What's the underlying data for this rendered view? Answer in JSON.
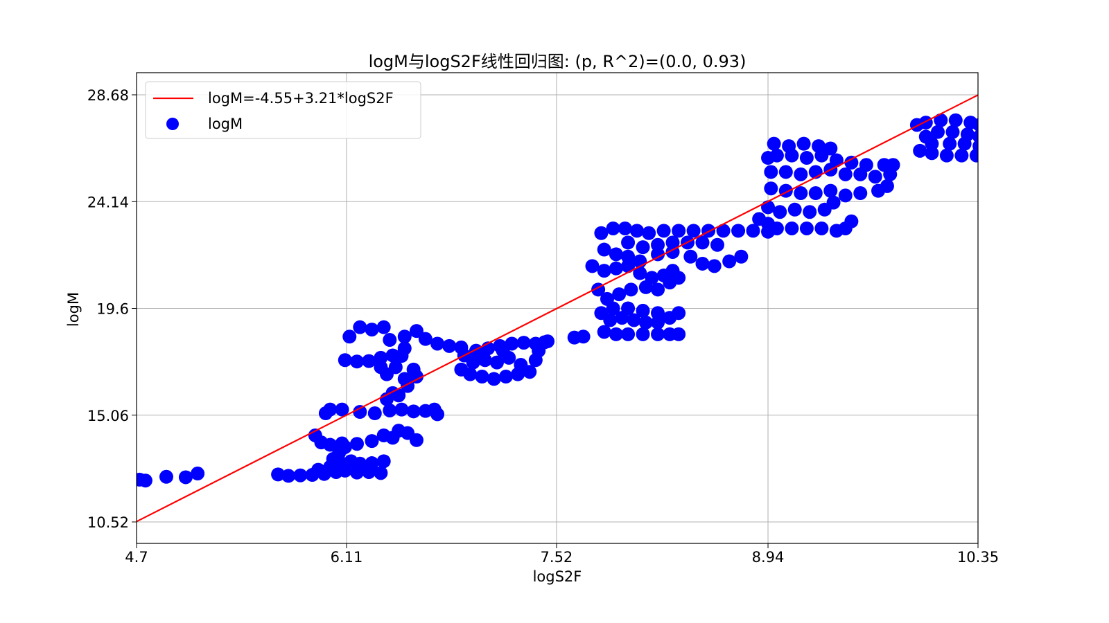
{
  "chart_data": {
    "type": "scatter",
    "title": "logM与logS2F线性回归图: (p, R^2)=(0.0, 0.93)",
    "xlabel": "logS2F",
    "ylabel": "logM",
    "xlim": [
      4.7,
      10.35
    ],
    "ylim": [
      10.52,
      28.68
    ],
    "xticks": [
      "4.7",
      "6.11",
      "7.52",
      "8.94",
      "10.35"
    ],
    "yticks": [
      "10.52",
      "15.06",
      "19.6",
      "24.14",
      "28.68"
    ],
    "grid": true,
    "legend_position": "upper left",
    "legend": [
      {
        "label": "logM=-4.55+3.21*logS2F",
        "kind": "line",
        "color": "#ff0000"
      },
      {
        "label": "logM",
        "kind": "marker",
        "color": "#0000ff"
      }
    ],
    "regression": {
      "intercept": -4.55,
      "slope": 3.21,
      "color": "#ff0000"
    },
    "series": [
      {
        "name": "logM",
        "color": "#0000ff",
        "points": [
          [
            4.72,
            12.32
          ],
          [
            4.76,
            12.28
          ],
          [
            4.9,
            12.44
          ],
          [
            5.03,
            12.42
          ],
          [
            5.11,
            12.58
          ],
          [
            5.65,
            12.54
          ],
          [
            5.72,
            12.48
          ],
          [
            5.8,
            12.5
          ],
          [
            5.88,
            12.52
          ],
          [
            5.96,
            12.56
          ],
          [
            6.04,
            12.64
          ],
          [
            6.1,
            12.7
          ],
          [
            6.18,
            12.62
          ],
          [
            6.26,
            12.64
          ],
          [
            6.34,
            12.6
          ],
          [
            5.92,
            12.74
          ],
          [
            6.0,
            12.86
          ],
          [
            6.08,
            13.0
          ],
          [
            6.02,
            13.2
          ],
          [
            6.06,
            13.46
          ],
          [
            6.1,
            13.7
          ],
          [
            6.14,
            13.1
          ],
          [
            6.2,
            13.0
          ],
          [
            6.28,
            13.02
          ],
          [
            6.36,
            13.1
          ],
          [
            5.9,
            14.2
          ],
          [
            5.94,
            13.9
          ],
          [
            6.0,
            13.8
          ],
          [
            6.08,
            13.86
          ],
          [
            6.18,
            13.84
          ],
          [
            6.28,
            13.96
          ],
          [
            6.36,
            14.2
          ],
          [
            6.42,
            14.1
          ],
          [
            6.46,
            14.4
          ],
          [
            6.52,
            14.3
          ],
          [
            6.58,
            14.0
          ],
          [
            5.97,
            15.14
          ],
          [
            6.0,
            15.3
          ],
          [
            6.08,
            15.3
          ],
          [
            6.2,
            15.2
          ],
          [
            6.3,
            15.14
          ],
          [
            6.4,
            15.26
          ],
          [
            6.48,
            15.3
          ],
          [
            6.56,
            15.22
          ],
          [
            6.64,
            15.24
          ],
          [
            6.7,
            15.3
          ],
          [
            6.72,
            15.1
          ],
          [
            6.38,
            15.74
          ],
          [
            6.42,
            16.0
          ],
          [
            6.46,
            15.9
          ],
          [
            6.52,
            16.3
          ],
          [
            6.5,
            16.6
          ],
          [
            6.38,
            16.8
          ],
          [
            6.34,
            17.1
          ],
          [
            6.44,
            17.1
          ],
          [
            6.56,
            17.0
          ],
          [
            6.58,
            16.7
          ],
          [
            6.1,
            17.4
          ],
          [
            6.18,
            17.34
          ],
          [
            6.26,
            17.36
          ],
          [
            6.34,
            17.5
          ],
          [
            6.42,
            17.6
          ],
          [
            6.48,
            17.58
          ],
          [
            6.5,
            17.9
          ],
          [
            6.13,
            18.4
          ],
          [
            6.2,
            18.8
          ],
          [
            6.28,
            18.7
          ],
          [
            6.36,
            18.8
          ],
          [
            6.4,
            18.26
          ],
          [
            6.5,
            18.4
          ],
          [
            6.58,
            18.64
          ],
          [
            6.64,
            18.3
          ],
          [
            6.72,
            18.1
          ],
          [
            6.8,
            18.0
          ],
          [
            6.88,
            17.94
          ],
          [
            6.9,
            17.6
          ],
          [
            6.98,
            17.8
          ],
          [
            7.06,
            17.9
          ],
          [
            7.14,
            18.0
          ],
          [
            7.22,
            18.1
          ],
          [
            7.3,
            18.14
          ],
          [
            7.38,
            18.1
          ],
          [
            7.44,
            18.16
          ],
          [
            7.46,
            18.2
          ],
          [
            7.4,
            17.8
          ],
          [
            6.88,
            17.0
          ],
          [
            6.94,
            16.8
          ],
          [
            7.02,
            16.7
          ],
          [
            7.1,
            16.6
          ],
          [
            7.18,
            16.7
          ],
          [
            7.26,
            16.8
          ],
          [
            7.34,
            16.9
          ],
          [
            7.38,
            17.4
          ],
          [
            6.96,
            17.3
          ],
          [
            7.04,
            17.4
          ],
          [
            7.12,
            17.3
          ],
          [
            7.2,
            17.5
          ],
          [
            7.28,
            17.2
          ],
          [
            7.0,
            17.6
          ],
          [
            7.16,
            17.8
          ],
          [
            7.64,
            18.36
          ],
          [
            7.7,
            18.4
          ],
          [
            7.84,
            18.6
          ],
          [
            7.92,
            18.5
          ],
          [
            8.0,
            18.5
          ],
          [
            8.1,
            18.5
          ],
          [
            8.2,
            18.5
          ],
          [
            8.28,
            18.5
          ],
          [
            8.34,
            18.5
          ],
          [
            7.88,
            19.1
          ],
          [
            7.96,
            19.2
          ],
          [
            8.04,
            19.1
          ],
          [
            8.12,
            19.0
          ],
          [
            8.2,
            19.0
          ],
          [
            8.28,
            19.2
          ],
          [
            8.34,
            19.4
          ],
          [
            7.82,
            19.4
          ],
          [
            7.9,
            19.6
          ],
          [
            8.0,
            19.6
          ],
          [
            8.1,
            19.5
          ],
          [
            8.2,
            19.4
          ],
          [
            7.86,
            20.0
          ],
          [
            7.94,
            20.2
          ],
          [
            8.02,
            20.4
          ],
          [
            8.12,
            20.5
          ],
          [
            8.2,
            20.4
          ],
          [
            8.28,
            20.7
          ],
          [
            8.34,
            20.9
          ],
          [
            7.8,
            20.4
          ],
          [
            7.76,
            21.4
          ],
          [
            7.84,
            21.2
          ],
          [
            7.92,
            21.3
          ],
          [
            8.0,
            21.4
          ],
          [
            8.08,
            21.1
          ],
          [
            8.16,
            20.9
          ],
          [
            8.24,
            21.0
          ],
          [
            8.3,
            21.2
          ],
          [
            7.84,
            22.1
          ],
          [
            7.92,
            21.9
          ],
          [
            8.0,
            21.8
          ],
          [
            8.08,
            21.6
          ],
          [
            8.2,
            21.9
          ],
          [
            8.3,
            22.0
          ],
          [
            8.42,
            21.8
          ],
          [
            8.5,
            21.5
          ],
          [
            8.58,
            21.4
          ],
          [
            8.68,
            21.6
          ],
          [
            8.76,
            21.8
          ],
          [
            7.82,
            22.8
          ],
          [
            7.9,
            23.0
          ],
          [
            7.98,
            23.0
          ],
          [
            8.06,
            22.9
          ],
          [
            8.14,
            22.8
          ],
          [
            8.24,
            22.9
          ],
          [
            8.34,
            22.9
          ],
          [
            8.44,
            22.9
          ],
          [
            8.54,
            22.9
          ],
          [
            8.64,
            22.9
          ],
          [
            8.74,
            22.9
          ],
          [
            8.84,
            22.9
          ],
          [
            8.94,
            22.86
          ],
          [
            8.0,
            22.4
          ],
          [
            8.1,
            22.2
          ],
          [
            8.2,
            22.3
          ],
          [
            8.3,
            22.4
          ],
          [
            8.4,
            22.4
          ],
          [
            8.5,
            22.4
          ],
          [
            8.6,
            22.3
          ],
          [
            8.88,
            23.4
          ],
          [
            8.94,
            23.2
          ],
          [
            9.0,
            23.0
          ],
          [
            9.1,
            23.0
          ],
          [
            9.2,
            23.0
          ],
          [
            9.3,
            23.0
          ],
          [
            9.4,
            22.9
          ],
          [
            9.46,
            23.0
          ],
          [
            9.5,
            23.3
          ],
          [
            8.94,
            23.9
          ],
          [
            9.02,
            23.7
          ],
          [
            9.12,
            23.8
          ],
          [
            9.22,
            23.7
          ],
          [
            9.32,
            23.8
          ],
          [
            9.38,
            24.1
          ],
          [
            8.96,
            24.7
          ],
          [
            9.06,
            24.6
          ],
          [
            9.16,
            24.5
          ],
          [
            9.26,
            24.5
          ],
          [
            9.36,
            24.6
          ],
          [
            9.46,
            24.4
          ],
          [
            9.56,
            24.5
          ],
          [
            9.68,
            24.6
          ],
          [
            9.74,
            24.8
          ],
          [
            8.96,
            25.4
          ],
          [
            9.06,
            25.4
          ],
          [
            9.16,
            25.3
          ],
          [
            9.26,
            25.4
          ],
          [
            9.36,
            25.5
          ],
          [
            9.46,
            25.3
          ],
          [
            9.56,
            25.3
          ],
          [
            9.66,
            25.2
          ],
          [
            9.76,
            25.3
          ],
          [
            8.94,
            26.0
          ],
          [
            9.0,
            26.1
          ],
          [
            9.1,
            26.1
          ],
          [
            9.2,
            26.0
          ],
          [
            9.3,
            26.1
          ],
          [
            9.4,
            25.9
          ],
          [
            9.5,
            25.8
          ],
          [
            9.6,
            25.7
          ],
          [
            9.72,
            25.7
          ],
          [
            9.78,
            25.7
          ],
          [
            8.98,
            26.6
          ],
          [
            9.08,
            26.5
          ],
          [
            9.18,
            26.6
          ],
          [
            9.28,
            26.5
          ],
          [
            9.36,
            26.4
          ],
          [
            9.94,
            27.4
          ],
          [
            10.0,
            27.5
          ],
          [
            10.1,
            27.6
          ],
          [
            10.2,
            27.6
          ],
          [
            10.3,
            27.5
          ],
          [
            10.36,
            27.4
          ],
          [
            10.0,
            26.9
          ],
          [
            10.08,
            27.1
          ],
          [
            10.18,
            27.1
          ],
          [
            10.28,
            27.0
          ],
          [
            10.36,
            26.9
          ],
          [
            10.46,
            27.0
          ],
          [
            10.52,
            27.4
          ],
          [
            10.6,
            27.0
          ],
          [
            9.96,
            26.3
          ],
          [
            10.04,
            26.2
          ],
          [
            10.14,
            26.1
          ],
          [
            10.24,
            26.1
          ],
          [
            10.34,
            26.1
          ],
          [
            10.42,
            26.2
          ],
          [
            10.52,
            26.3
          ],
          [
            10.62,
            26.1
          ],
          [
            10.04,
            26.6
          ],
          [
            10.16,
            26.6
          ],
          [
            10.26,
            26.6
          ],
          [
            10.36,
            26.5
          ],
          [
            10.5,
            26.6
          ]
        ]
      }
    ]
  }
}
